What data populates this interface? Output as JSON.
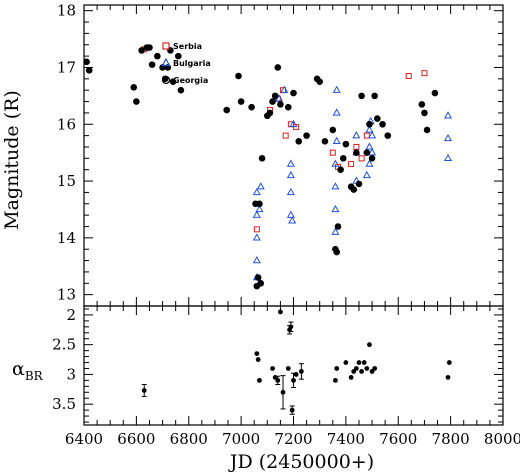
{
  "chart_data": [
    {
      "type": "scatter",
      "ylabel": "Magnitude (R)",
      "xlabel": "",
      "xlim": [
        6400,
        8000
      ],
      "ylim": [
        18.1,
        12.8
      ],
      "y_inverted": true,
      "yticks": [
        13,
        14,
        15,
        16,
        17,
        18
      ],
      "legend": {
        "placement": "top-left",
        "entries": [
          "Serbia",
          "Bulgaria",
          "Georgia"
        ]
      },
      "series": [
        {
          "name": "Serbia",
          "marker": "open-square",
          "color": "#e0201b",
          "points": [
            [
              6630,
              17.32
            ],
            [
              7060,
              14.15
            ],
            [
              7110,
              16.25
            ],
            [
              7140,
              16.45
            ],
            [
              7160,
              16.6
            ],
            [
              7170,
              15.8
            ],
            [
              7190,
              16.0
            ],
            [
              7210,
              15.95
            ],
            [
              7350,
              15.5
            ],
            [
              7370,
              15.25
            ],
            [
              7420,
              15.3
            ],
            [
              7440,
              15.6
            ],
            [
              7460,
              15.4
            ],
            [
              7480,
              15.8
            ],
            [
              7640,
              16.85
            ],
            [
              7700,
              16.9
            ]
          ]
        },
        {
          "name": "Bulgaria",
          "marker": "open-triangle",
          "color": "#2050e0",
          "points": [
            [
              7060,
              13.3
            ],
            [
              7060,
              13.6
            ],
            [
              7060,
              14.0
            ],
            [
              7060,
              14.4
            ],
            [
              7060,
              14.8
            ],
            [
              7070,
              13.2
            ],
            [
              7070,
              14.5
            ],
            [
              7075,
              14.9
            ],
            [
              7145,
              16.45
            ],
            [
              7165,
              16.6
            ],
            [
              7190,
              14.4
            ],
            [
              7190,
              14.8
            ],
            [
              7190,
              15.1
            ],
            [
              7190,
              15.3
            ],
            [
              7195,
              14.3
            ],
            [
              7200,
              16.0
            ],
            [
              7360,
              14.1
            ],
            [
              7360,
              14.5
            ],
            [
              7360,
              14.9
            ],
            [
              7360,
              15.3
            ],
            [
              7365,
              15.7
            ],
            [
              7365,
              16.2
            ],
            [
              7365,
              16.6
            ],
            [
              7440,
              15.0
            ],
            [
              7440,
              15.5
            ],
            [
              7440,
              15.8
            ],
            [
              7480,
              15.1
            ],
            [
              7490,
              15.3
            ],
            [
              7490,
              15.6
            ],
            [
              7490,
              15.9
            ],
            [
              7495,
              16.05
            ],
            [
              7500,
              15.5
            ],
            [
              7500,
              15.8
            ],
            [
              7790,
              15.4
            ],
            [
              7790,
              15.75
            ],
            [
              7790,
              16.15
            ]
          ]
        },
        {
          "name": "Georgia",
          "marker": "filled-circle",
          "color": "#000000",
          "points": [
            [
              6410,
              17.1
            ],
            [
              6420,
              16.95
            ],
            [
              6590,
              16.65
            ],
            [
              6600,
              16.4
            ],
            [
              6620,
              17.3
            ],
            [
              6640,
              17.35
            ],
            [
              6650,
              17.35
            ],
            [
              6660,
              17.05
            ],
            [
              6680,
              17.2
            ],
            [
              6700,
              17.0
            ],
            [
              6710,
              16.8
            ],
            [
              6720,
              17.0
            ],
            [
              6730,
              17.3
            ],
            [
              6740,
              16.75
            ],
            [
              6760,
              17.2
            ],
            [
              6770,
              16.6
            ],
            [
              6945,
              16.25
            ],
            [
              6990,
              16.85
            ],
            [
              7000,
              16.4
            ],
            [
              7040,
              16.3
            ],
            [
              7055,
              14.6
            ],
            [
              7060,
              13.15
            ],
            [
              7065,
              13.3
            ],
            [
              7070,
              14.6
            ],
            [
              7075,
              13.2
            ],
            [
              7080,
              15.4
            ],
            [
              7100,
              16.15
            ],
            [
              7110,
              16.2
            ],
            [
              7120,
              16.4
            ],
            [
              7130,
              16.5
            ],
            [
              7140,
              17.0
            ],
            [
              7150,
              16.35
            ],
            [
              7180,
              16.3
            ],
            [
              7200,
              16.55
            ],
            [
              7220,
              15.7
            ],
            [
              7250,
              15.8
            ],
            [
              7290,
              16.8
            ],
            [
              7300,
              16.75
            ],
            [
              7320,
              15.7
            ],
            [
              7350,
              15.9
            ],
            [
              7360,
              13.8
            ],
            [
              7365,
              13.75
            ],
            [
              7370,
              14.2
            ],
            [
              7380,
              15.2
            ],
            [
              7390,
              15.4
            ],
            [
              7400,
              15.65
            ],
            [
              7420,
              14.9
            ],
            [
              7430,
              14.85
            ],
            [
              7440,
              15.5
            ],
            [
              7450,
              14.95
            ],
            [
              7460,
              16.5
            ],
            [
              7480,
              15.5
            ],
            [
              7490,
              16.0
            ],
            [
              7500,
              15.4
            ],
            [
              7510,
              16.5
            ],
            [
              7520,
              16.1
            ],
            [
              7540,
              16.0
            ],
            [
              7560,
              15.8
            ],
            [
              7690,
              16.35
            ],
            [
              7700,
              16.2
            ],
            [
              7710,
              15.9
            ],
            [
              7740,
              16.55
            ]
          ]
        }
      ]
    },
    {
      "type": "scatter",
      "ylabel": "α",
      "ylabel_sub": "BR",
      "xlabel": "JD (2450000+)",
      "xlim": [
        6400,
        8000
      ],
      "ylim": [
        1.85,
        3.85
      ],
      "xticks": [
        6400,
        6600,
        6800,
        7000,
        7200,
        7400,
        7600,
        7800,
        8000
      ],
      "yticks": [
        2,
        2.5,
        3,
        3.5
      ],
      "ytick_labels": [
        "2",
        "2.5",
        "3",
        "3.5"
      ],
      "series": [
        {
          "marker": "filled-circle-errorbar",
          "color": "#000000",
          "points": [
            [
              6630,
              3.27,
              0.1
            ],
            [
              7060,
              2.65,
              0
            ],
            [
              7065,
              2.75,
              0
            ],
            [
              7070,
              3.1,
              0
            ],
            [
              7120,
              2.9,
              0
            ],
            [
              7130,
              3.05,
              0
            ],
            [
              7140,
              3.1,
              0.07
            ],
            [
              7150,
              1.95,
              0
            ],
            [
              7160,
              3.3,
              0.28
            ],
            [
              7180,
              2.9,
              0
            ],
            [
              7185,
              2.25,
              0.07
            ],
            [
              7190,
              2.2,
              0.08
            ],
            [
              7195,
              3.6,
              0.07
            ],
            [
              7200,
              3.1,
              0.12
            ],
            [
              7210,
              3.0,
              0
            ],
            [
              7230,
              2.95,
              0.13
            ],
            [
              7360,
              3.1,
              0
            ],
            [
              7365,
              2.9,
              0
            ],
            [
              7400,
              2.8,
              0
            ],
            [
              7420,
              3.05,
              0
            ],
            [
              7430,
              2.95,
              0
            ],
            [
              7440,
              2.9,
              0
            ],
            [
              7450,
              2.8,
              0
            ],
            [
              7460,
              2.95,
              0
            ],
            [
              7470,
              2.8,
              0
            ],
            [
              7480,
              2.9,
              0
            ],
            [
              7490,
              2.5,
              0
            ],
            [
              7500,
              2.95,
              0
            ],
            [
              7510,
              2.9,
              0
            ],
            [
              7790,
              3.05,
              0
            ],
            [
              7795,
              2.8,
              0
            ]
          ]
        }
      ]
    }
  ]
}
